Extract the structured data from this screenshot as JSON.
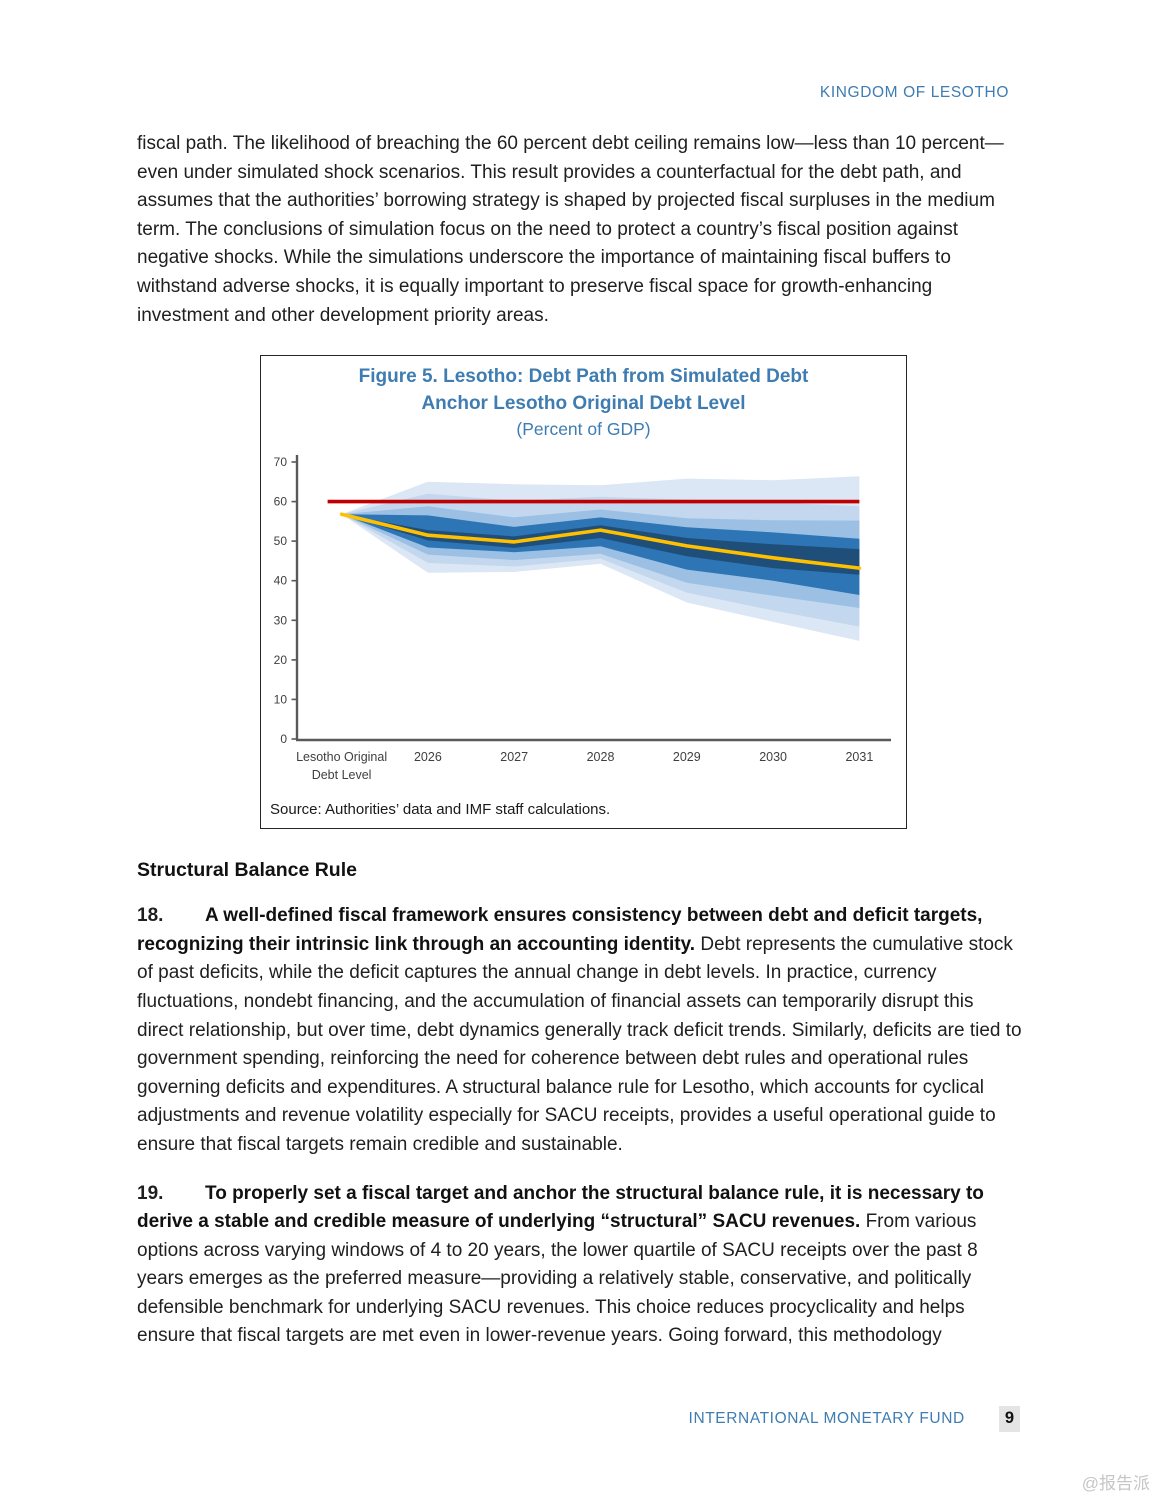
{
  "header": {
    "title": "KINGDOM OF LESOTHO"
  },
  "paragraphs": {
    "intro": "fiscal path. The likelihood of breaching the 60 percent debt ceiling remains low—less than 10 percent—even under simulated shock scenarios. This result provides a counterfactual for the debt path, and assumes that the authorities’ borrowing strategy is shaped by projected fiscal surpluses in the medium term. The conclusions of simulation focus on the need to protect a country’s fiscal position against negative shocks. While the simulations underscore the importance of maintaining fiscal buffers to withstand adverse shocks, it is equally important to preserve fiscal space for growth-enhancing investment and other development priority areas.",
    "p18_num": "18.",
    "p18_bold": "A well-defined fiscal framework ensures consistency between debt and deficit targets, recognizing their intrinsic link through an accounting identity.",
    "p18_text": "Debt represents the cumulative stock of past deficits, while the deficit captures the annual change in debt levels. In practice, currency fluctuations, nondebt financing, and the accumulation of financial assets can temporarily disrupt this direct relationship, but over time, debt dynamics generally track deficit trends. Similarly, deficits are tied to government spending, reinforcing the need for coherence between debt rules and operational rules governing deficits and expenditures. A structural balance rule for Lesotho, which accounts for cyclical adjustments and revenue volatility especially for SACU receipts, provides a useful operational guide to ensure that fiscal targets remain credible and sustainable.",
    "p19_num": "19.",
    "p19_bold": "To properly set a fiscal target and anchor the structural balance rule, it is necessary to derive a stable and credible measure of underlying “structural” SACU revenues.",
    "p19_text": "From various options across varying windows of 4 to 20 years, the lower quartile of SACU receipts over the past 8 years emerges as the preferred measure—providing a relatively stable, conservative, and politically defensible benchmark for underlying SACU revenues. This choice reduces procyclicality and helps ensure that fiscal targets are met even in lower-revenue years. Going forward, this methodology"
  },
  "section_heading": "Structural Balance Rule",
  "figure": {
    "title_line1": "Figure 5. Lesotho: Debt Path from Simulated Debt",
    "title_line2": "Anchor Lesotho Original Debt Level",
    "subtitle": "(Percent of GDP)",
    "source": "Source: Authorities’ data and IMF staff calculations."
  },
  "chart_data": {
    "type": "area",
    "title": "Figure 5. Lesotho: Debt Path from Simulated Debt Anchor Lesotho Original Debt Level",
    "subtitle": "(Percent of GDP)",
    "categories": [
      "Lesotho Original\nDebt Level",
      "2026",
      "2027",
      "2028",
      "2029",
      "2030",
      "2031"
    ],
    "ylim": [
      0,
      70
    ],
    "yticks": [
      0,
      10,
      20,
      30,
      40,
      50,
      60,
      70
    ],
    "grid": false,
    "legend": "none",
    "debt_ceiling_value": 60,
    "median": [
      56.8,
      51.5,
      49.8,
      52.8,
      48.8,
      45.8,
      43.2
    ],
    "bands": [
      {
        "color": "#dbe7f4",
        "upper": [
          56.8,
          65.0,
          64.4,
          64.1,
          65.8,
          65.4,
          66.4
        ],
        "lower": [
          56.8,
          42.0,
          42.2,
          44.3,
          34.5,
          29.6,
          24.8
        ]
      },
      {
        "color": "#c3d7ee",
        "upper": [
          56.8,
          62.0,
          60.2,
          61.2,
          60.5,
          59.8,
          58.8
        ],
        "lower": [
          56.8,
          44.5,
          43.6,
          45.6,
          37.0,
          32.5,
          28.4
        ]
      },
      {
        "color": "#9cc0e4",
        "upper": [
          56.8,
          58.8,
          56.0,
          58.0,
          55.8,
          55.3,
          55.2
        ],
        "lower": [
          56.8,
          46.6,
          45.2,
          46.8,
          39.5,
          36.2,
          33.1
        ]
      },
      {
        "color": "#2e75b6",
        "upper": [
          56.8,
          56.5,
          53.6,
          56.0,
          53.5,
          52.2,
          50.6
        ],
        "lower": [
          56.8,
          48.4,
          47.2,
          48.7,
          42.8,
          40.0,
          36.4
        ]
      },
      {
        "color": "#1f4e79",
        "upper": [
          56.8,
          52.8,
          51.2,
          54.0,
          50.8,
          49.2,
          48.0
        ],
        "lower": [
          56.8,
          50.2,
          48.3,
          50.8,
          46.2,
          43.2,
          41.5
        ]
      }
    ],
    "median_color": "#ffc000",
    "ceiling_color": "#c00000",
    "axis_color": "#595959",
    "tick_label_color": "#3f3f3f"
  },
  "footer": {
    "org": "INTERNATIONAL MONETARY FUND",
    "page": "9"
  },
  "watermark": "@报告派"
}
